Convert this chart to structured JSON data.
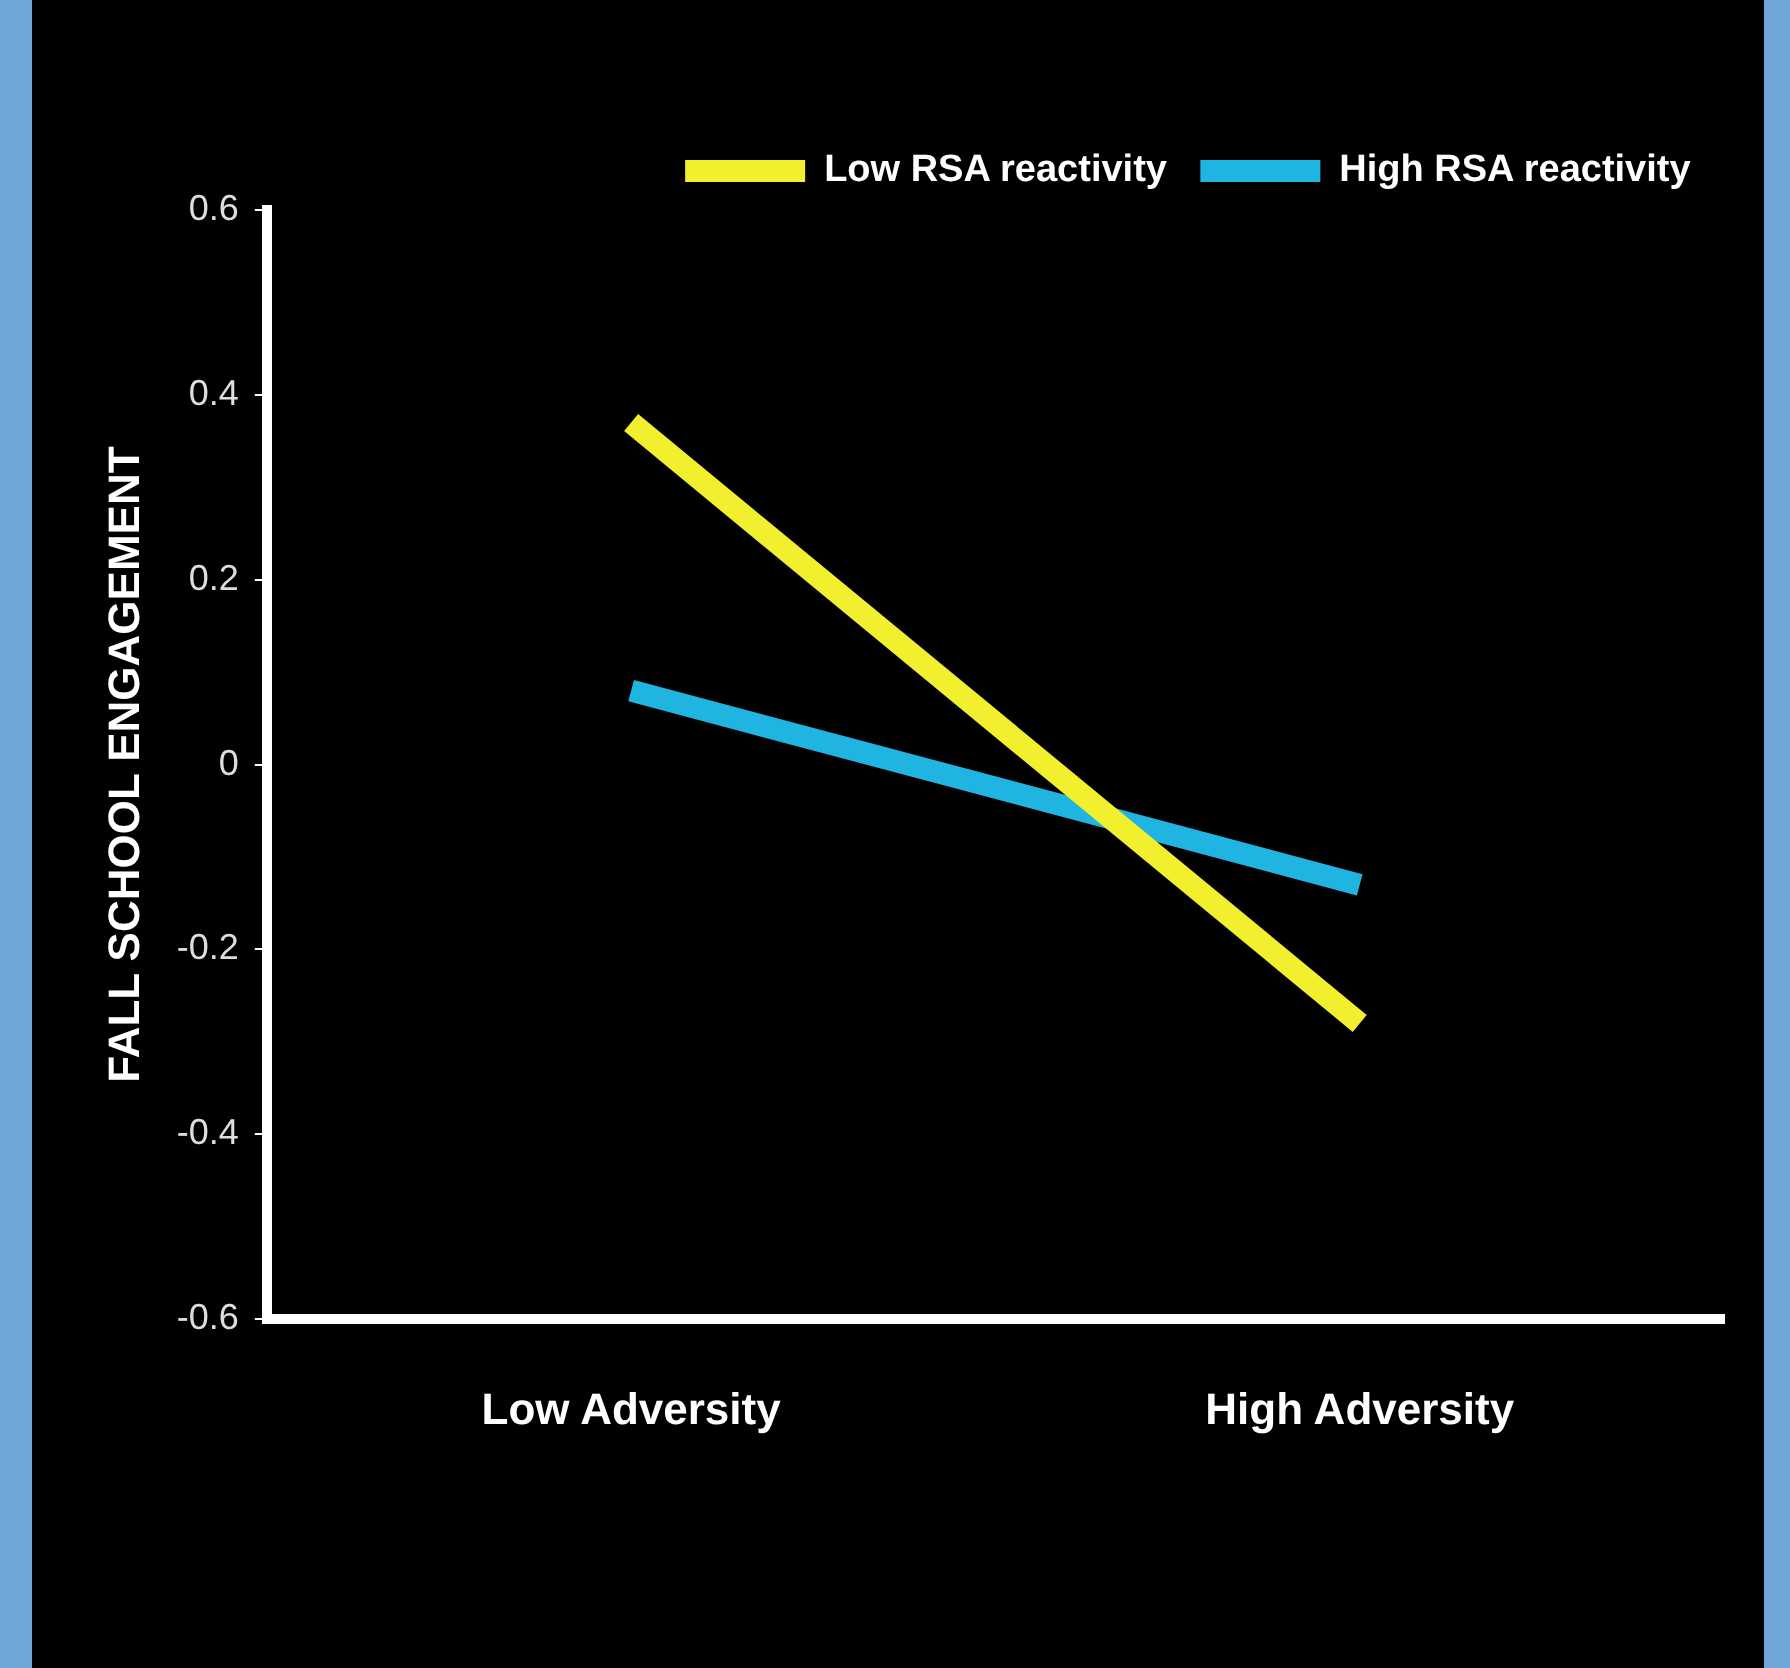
{
  "chart_data": {
    "type": "line",
    "ylabel": "FALL SCHOOL ENGAGEMENT",
    "categories": [
      "Low Adversity",
      "High Adversity"
    ],
    "series": [
      {
        "name": "Low RSA reactivity",
        "color": "#f2ef2e",
        "values": [
          0.37,
          -0.28
        ]
      },
      {
        "name": "High RSA reactivity",
        "color": "#1fb5e0",
        "values": [
          0.08,
          -0.13
        ]
      }
    ],
    "ylim": [
      -0.6,
      0.6
    ],
    "yticks": [
      -0.6,
      -0.4,
      -0.2,
      0,
      0.2,
      0.4,
      0.6
    ],
    "grid": false,
    "legend": "top right",
    "marker": "none",
    "line_style": "solid"
  }
}
